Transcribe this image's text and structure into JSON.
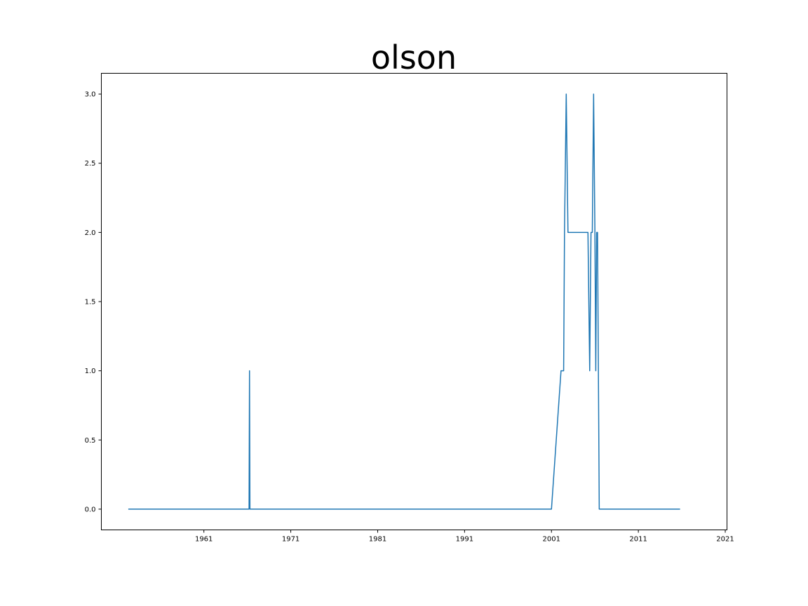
{
  "chart_data": {
    "type": "line",
    "title": "olson",
    "xlabel": "",
    "ylabel": "",
    "xlim": [
      1949.2,
      2021.2
    ],
    "ylim": [
      -0.15,
      3.15
    ],
    "x_ticks": [
      1961,
      1971,
      1981,
      1991,
      2001,
      2011,
      2021
    ],
    "y_ticks": [
      0.0,
      0.5,
      1.0,
      1.5,
      2.0,
      2.5,
      3.0
    ],
    "y_tick_labels": [
      "0.0",
      "0.5",
      "1.0",
      "1.5",
      "2.0",
      "2.5",
      "3.0"
    ],
    "grid": false,
    "legend": "none",
    "series": [
      {
        "color": "#1f77b4",
        "x": [
          1952.3,
          1966.2,
          1966.25,
          1966.3,
          2001.0,
          2002.1,
          2002.4,
          2002.5,
          2002.7,
          2002.9,
          2005.2,
          2005.4,
          2005.55,
          2005.7,
          2005.85,
          2006.0,
          2006.1,
          2006.2,
          2006.3,
          2006.5,
          2006.6,
          2006.75,
          2006.8,
          2015.8
        ],
        "y": [
          0,
          0,
          1,
          0,
          0,
          1,
          1,
          2,
          3,
          2,
          2,
          1,
          2,
          2,
          3,
          2,
          1,
          2,
          2,
          0,
          0,
          0,
          0,
          0
        ]
      }
    ]
  }
}
